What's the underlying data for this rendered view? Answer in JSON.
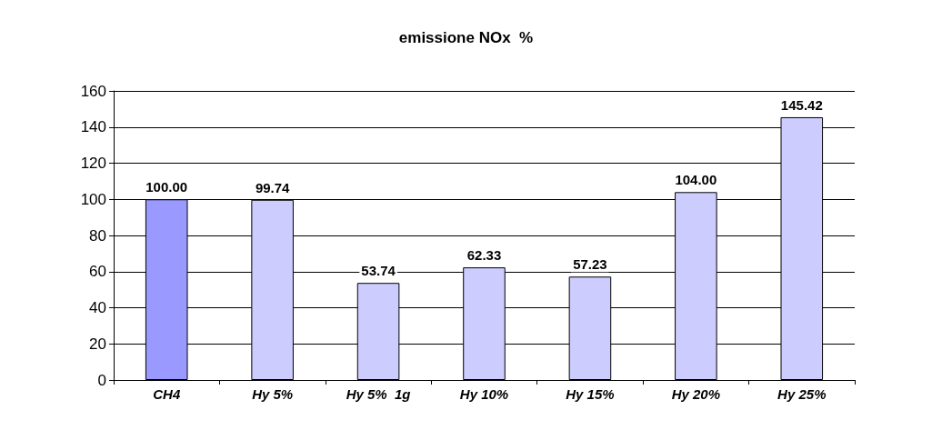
{
  "chart_data": {
    "type": "bar",
    "title": "emissione NOx  %",
    "categories": [
      "CH4",
      "Hy 5%",
      "Hy 5%  1g",
      "Hy 10%",
      "Hy 15%",
      "Hy 20%",
      "Hy 25%"
    ],
    "values": [
      100.0,
      99.74,
      53.74,
      62.33,
      57.23,
      104.0,
      145.42
    ],
    "value_labels": [
      "100.00",
      "99.74",
      "53.74",
      "62.33",
      "57.23",
      "104.00",
      "145.42"
    ],
    "colors": [
      "#9999ff",
      "#ccccff",
      "#ccccff",
      "#ccccff",
      "#ccccff",
      "#ccccff",
      "#ccccff"
    ],
    "ylim": [
      0,
      160
    ],
    "yticks": [
      0,
      20,
      40,
      60,
      80,
      100,
      120,
      140,
      160
    ],
    "grid": "y"
  }
}
